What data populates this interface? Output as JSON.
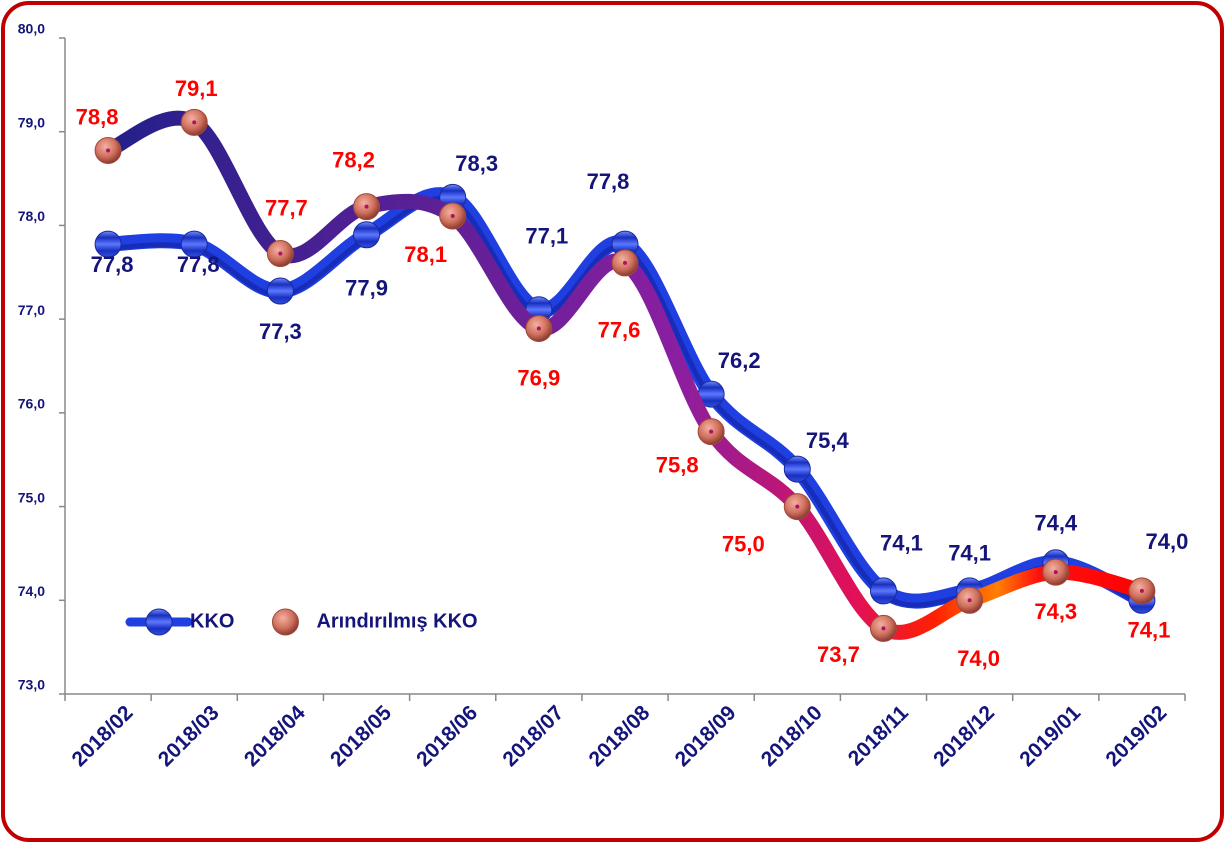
{
  "chart_data": {
    "type": "line",
    "categories": [
      "2018/02",
      "2018/03",
      "2018/04",
      "2018/05",
      "2018/06",
      "2018/07",
      "2018/08",
      "2018/09",
      "2018/10",
      "2018/11",
      "2018/12",
      "2019/01",
      "2019/02"
    ],
    "series": [
      {
        "name": "KKO",
        "color": "#1f3fe0",
        "label_color": "#14147a",
        "values": [
          77.8,
          77.8,
          77.3,
          77.9,
          78.3,
          77.1,
          77.8,
          76.2,
          75.4,
          74.1,
          74.1,
          74.4,
          74.0
        ],
        "value_labels": [
          "77,8",
          "77,8",
          "77,3",
          "77,9",
          "78,3",
          "77,1",
          "77,8",
          "76,2",
          "75,4",
          "74,1",
          "74,1",
          "74,4",
          "74,0"
        ]
      },
      {
        "name": "Arındırılmış KKO",
        "color": "#8a1fa0",
        "label_color": "#ff0000",
        "values": [
          78.8,
          79.1,
          77.7,
          78.2,
          78.1,
          76.9,
          77.6,
          75.8,
          75.0,
          73.7,
          74.0,
          74.3,
          74.1
        ],
        "value_labels": [
          "78,8",
          "79,1",
          "77,7",
          "78,2",
          "78,1",
          "76,9",
          "77,6",
          "75,8",
          "75,0",
          "73,7",
          "74,0",
          "74,3",
          "74,1"
        ]
      }
    ],
    "ylim": [
      73,
      80
    ],
    "yticks": [
      {
        "value": 73,
        "label": "73,0"
      },
      {
        "value": 74,
        "label": "74,0"
      },
      {
        "value": 75,
        "label": "75,0"
      },
      {
        "value": 76,
        "label": "76,0"
      },
      {
        "value": 77,
        "label": "77,0"
      },
      {
        "value": 78,
        "label": "78,0"
      },
      {
        "value": 79,
        "label": "79,0"
      },
      {
        "value": 80,
        "label": "80,0"
      }
    ],
    "legend": "lower left"
  }
}
